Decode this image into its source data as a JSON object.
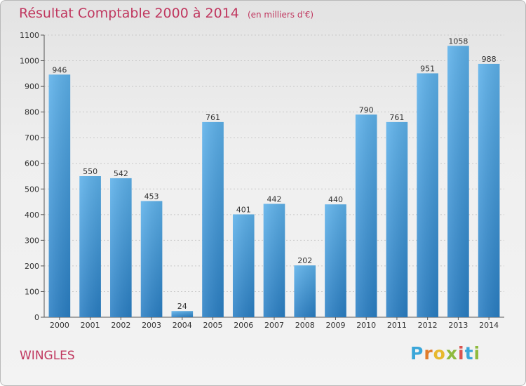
{
  "header": {
    "title": "Résultat Comptable 2000 à 2014",
    "subtitle": "(en milliers d'€)"
  },
  "footer": {
    "place": "WINGLES",
    "logo": "Proxiti"
  },
  "colors": {
    "title": "#c0375f",
    "bar_top": "#5db1ea",
    "bar_bottom": "#2a7fc4"
  },
  "chart_data": {
    "type": "bar",
    "title": "Résultat Comptable 2000 à 2014",
    "subtitle": "(en milliers d'€)",
    "categories": [
      "2000",
      "2001",
      "2002",
      "2003",
      "2004",
      "2005",
      "2006",
      "2007",
      "2008",
      "2009",
      "2010",
      "2011",
      "2012",
      "2013",
      "2014"
    ],
    "values": [
      946,
      550,
      542,
      453,
      24,
      761,
      401,
      442,
      202,
      440,
      790,
      761,
      951,
      1058,
      988
    ],
    "ylim": [
      0,
      1100
    ],
    "yticks": [
      0,
      100,
      200,
      300,
      400,
      500,
      600,
      700,
      800,
      900,
      1000,
      1100
    ],
    "grid": true,
    "legend": "none"
  }
}
